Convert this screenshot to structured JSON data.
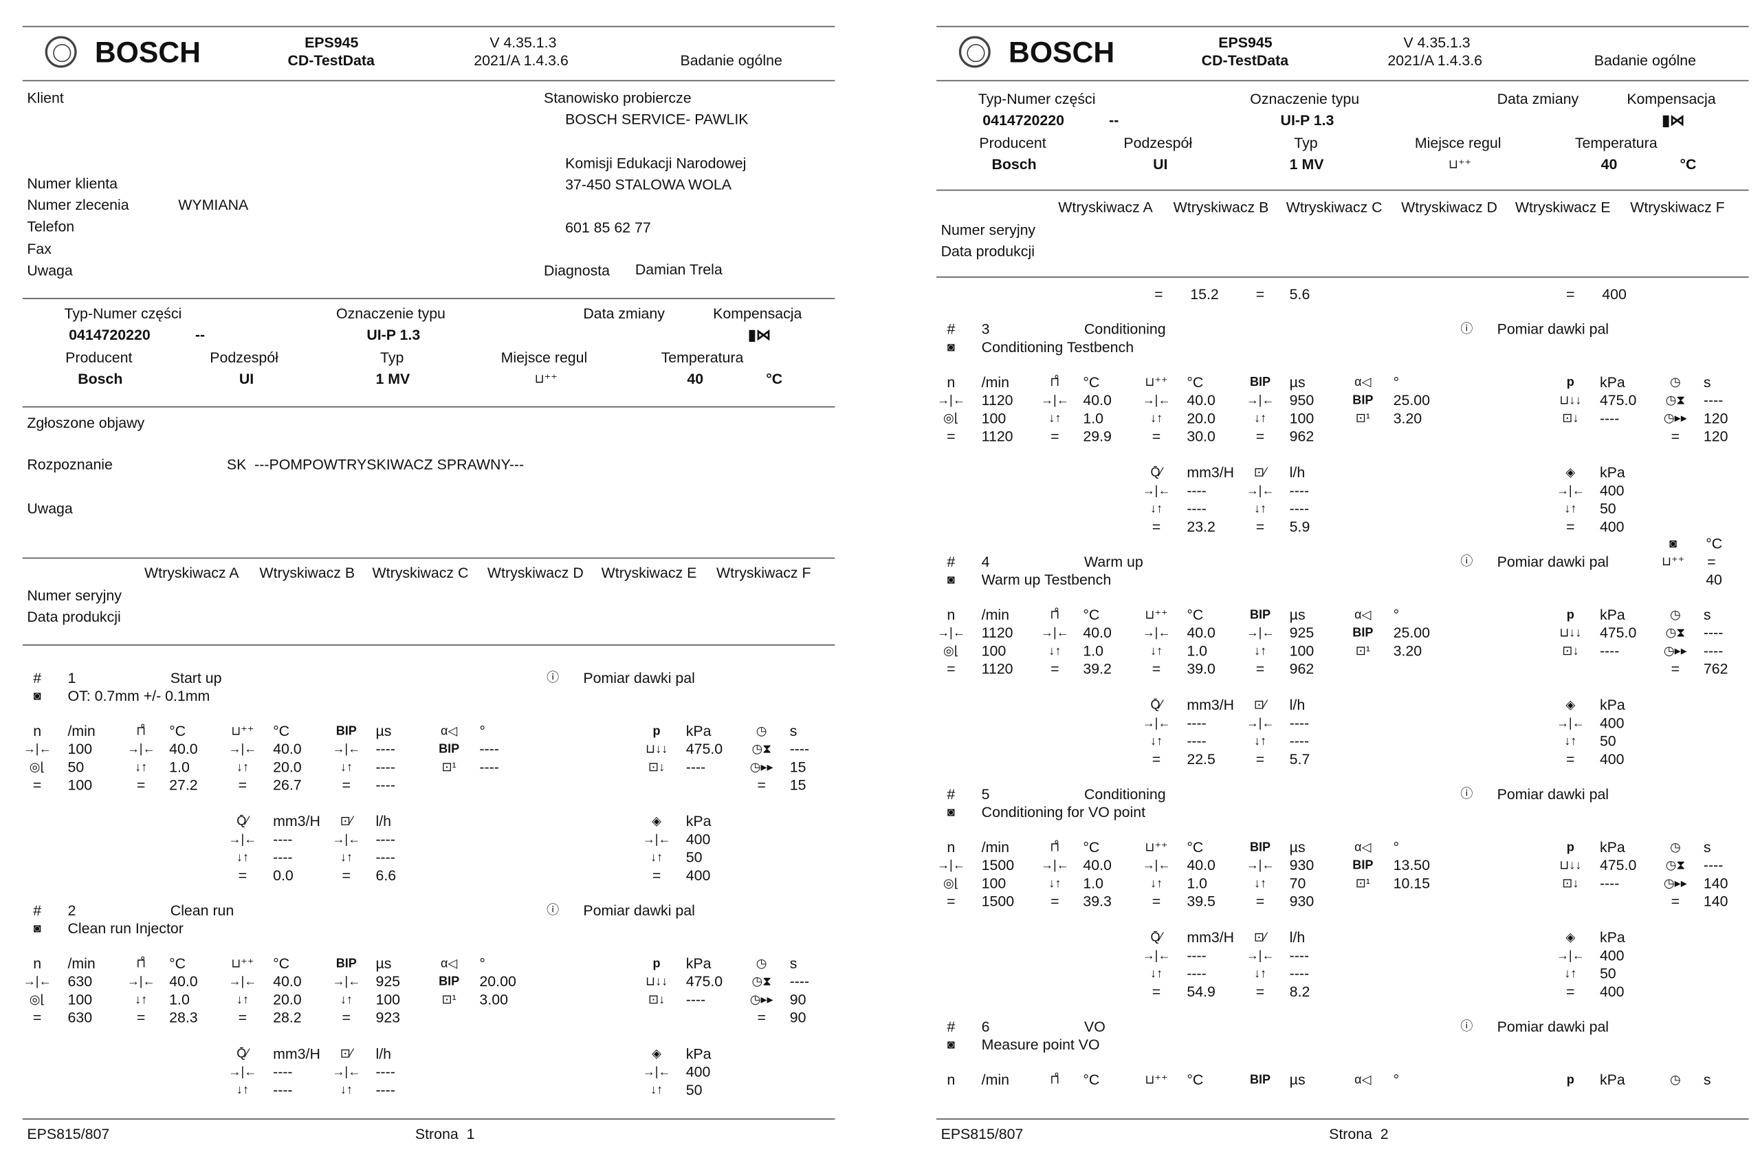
{
  "pages": [
    {
      "header": {
        "brand": "BOSCH",
        "product": "EPS945",
        "product_sub": "CD-TestData",
        "version": "V 4.35.1.3",
        "version_sub": "2021/A 1.4.3.6",
        "report_type": "Badanie ogólne"
      },
      "footer": {
        "left": "EPS815/807",
        "page": "Strona  1"
      }
    },
    {
      "header": {
        "brand": "BOSCH",
        "product": "EPS945",
        "product_sub": "CD-TestData",
        "version": "V 4.35.1.3",
        "version_sub": "2021/A 1.4.3.6",
        "report_type": "Badanie ogólne"
      },
      "footer": {
        "left": "EPS815/807",
        "page": "Strona  2"
      }
    }
  ],
  "client": {
    "klient_label": "Klient",
    "numer_klienta_label": "Numer klienta",
    "numer_zlecenia_label": "Numer zlecenia",
    "numer_zlecenia": "WYMIANA",
    "telefon_label": "Telefon",
    "fax_label": "Fax",
    "uwaga_label": "Uwaga",
    "station_label": "Stanowisko probiercze",
    "station_name": "BOSCH SERVICE- PAWLIK",
    "station_street": "Komisji Edukacji Narodowej",
    "station_city": "37-450 STALOWA WOLA",
    "station_phone": "601 85 62 77",
    "diagnosta_label": "Diagnosta",
    "diagnosta": "Damian Trela"
  },
  "part": {
    "typ_numer_label": "Typ-Numer części",
    "typ_numer": "0414720220",
    "typ_numer_suffix": "--",
    "oznaczenie_label": "Oznaczenie typu",
    "oznaczenie": "UI-P 1.3",
    "data_zmiany_label": "Data zmiany",
    "kompensacja_label": "Kompensacja",
    "kompensacja_icon": "temperature-compensation-icon",
    "producent_label": "Producent",
    "producent": "Bosch",
    "podzespol_label": "Podzespół",
    "podzespol": "UI",
    "typ_label": "Typ",
    "typ": "1 MV",
    "miejsce_label": "Miejsce regul",
    "miejsce_icon": "thermo-bath-icon",
    "temperatura_label": "Temperatura",
    "temperatura": "40",
    "temperatura_unit": "°C"
  },
  "findings": {
    "objawy_label": "Zgłoszone objawy",
    "rozpoznanie_label": "Rozpoznanie",
    "rozpoznanie": "SK  ---POMPOWTRYSKIWACZ SPRAWNY---",
    "uwaga_label": "Uwaga"
  },
  "injectors": {
    "columns": [
      "Wtryskiwacz A",
      "Wtryskiwacz B",
      "Wtryskiwacz C",
      "Wtryskiwacz D",
      "Wtryskiwacz E",
      "Wtryskiwacz F"
    ],
    "rows": [
      "Numer seryjny",
      "Data produkcji"
    ]
  },
  "symbols": {
    "hash": "#",
    "n": "n",
    "bip": "BIP",
    "p": "p",
    "eq": "="
  },
  "carryover": {
    "q": "15.2",
    "ret": "5.6",
    "pf": "400"
  },
  "tests": [
    {
      "num": "1",
      "name": "Start up",
      "desc": "OT: 0.7mm +/- 0.1mm",
      "measure": "Pomiar dawki pal",
      "n": [
        "100",
        "50",
        "100"
      ],
      "t1": [
        "40.0",
        "1.0",
        "27.2"
      ],
      "t2": [
        "40.0",
        "20.0",
        "26.7"
      ],
      "bip": [
        "----",
        "----",
        "----"
      ],
      "angle": [
        "----",
        "----"
      ],
      "p": [
        "475.0",
        "----"
      ],
      "time": [
        "----",
        "15",
        "15"
      ],
      "q": [
        "----",
        "----",
        "0.0"
      ],
      "ret": [
        "----",
        "----",
        "6.6"
      ],
      "pf": [
        "400",
        "50",
        "400"
      ]
    },
    {
      "num": "2",
      "name": "Clean run",
      "desc": "Clean run Injector",
      "measure": "Pomiar dawki pal",
      "n": [
        "630",
        "100",
        "630"
      ],
      "t1": [
        "40.0",
        "1.0",
        "28.3"
      ],
      "t2": [
        "40.0",
        "20.0",
        "28.2"
      ],
      "bip": [
        "925",
        "100",
        "923"
      ],
      "angle": [
        "20.00",
        "3.00"
      ],
      "p": [
        "475.0",
        "----"
      ],
      "time": [
        "----",
        "90",
        "90"
      ],
      "q": [
        "----",
        "----"
      ],
      "ret": [
        "----",
        "----"
      ],
      "pf": [
        "400",
        "50"
      ]
    },
    {
      "num": "3",
      "name": "Conditioning",
      "desc": "Conditioning Testbench",
      "measure": "Pomiar dawki pal",
      "n": [
        "1120",
        "100",
        "1120"
      ],
      "t1": [
        "40.0",
        "1.0",
        "29.9"
      ],
      "t2": [
        "40.0",
        "20.0",
        "30.0"
      ],
      "bip": [
        "950",
        "100",
        "962"
      ],
      "angle": [
        "25.00",
        "3.20"
      ],
      "p": [
        "475.0",
        "----"
      ],
      "time": [
        "----",
        "120",
        "120"
      ],
      "q": [
        "----",
        "----",
        "23.2"
      ],
      "ret": [
        "----",
        "----",
        "5.9"
      ],
      "pf": [
        "400",
        "50",
        "400"
      ],
      "extra": {
        "unit": "°C",
        "value": "40"
      }
    },
    {
      "num": "4",
      "name": "Warm up",
      "desc": "Warm up Testbench",
      "measure": "Pomiar dawki pal",
      "n": [
        "1120",
        "100",
        "1120"
      ],
      "t1": [
        "40.0",
        "1.0",
        "39.2"
      ],
      "t2": [
        "40.0",
        "1.0",
        "39.0"
      ],
      "bip": [
        "925",
        "100",
        "962"
      ],
      "angle": [
        "25.00",
        "3.20"
      ],
      "p": [
        "475.0",
        "----"
      ],
      "time": [
        "----",
        "----",
        "762"
      ],
      "q": [
        "----",
        "----",
        "22.5"
      ],
      "ret": [
        "----",
        "----",
        "5.7"
      ],
      "pf": [
        "400",
        "50",
        "400"
      ]
    },
    {
      "num": "5",
      "name": "Conditioning",
      "desc": "Conditioning for VO point",
      "measure": "Pomiar dawki pal",
      "n": [
        "1500",
        "100",
        "1500"
      ],
      "t1": [
        "40.0",
        "1.0",
        "39.3"
      ],
      "t2": [
        "40.0",
        "1.0",
        "39.5"
      ],
      "bip": [
        "930",
        "70",
        "930"
      ],
      "angle": [
        "13.50",
        "10.15"
      ],
      "p": [
        "475.0",
        "----"
      ],
      "time": [
        "----",
        "140",
        "140"
      ],
      "q": [
        "----",
        "----",
        "54.9"
      ],
      "ret": [
        "----",
        "----",
        "8.2"
      ],
      "pf": [
        "400",
        "50",
        "400"
      ]
    },
    {
      "num": "6",
      "name": "VO",
      "desc": "Measure point VO",
      "measure": "Pomiar dawki pal",
      "n": [],
      "t1": [],
      "t2": [],
      "bip": [],
      "angle": [],
      "p": [],
      "time": [],
      "noflow": true
    }
  ],
  "units": {
    "n": "/min",
    "t1": "°C",
    "t2": "°C",
    "bip": "µs",
    "angle": "°",
    "p": "kPa",
    "time": "s",
    "q": "mm3/H",
    "ret": "l/h",
    "pf": "kPa"
  },
  "icons": {
    "target": "→|←",
    "tolerance": "↓↑",
    "rpm_tol": "◎⌊",
    "thermo": "⊓̊",
    "bath": "⊔⁺⁺",
    "alpha": "α◁",
    "delta": "⊡¹",
    "pump": "⊔↓↓",
    "return": "⊡↓",
    "clock": "◷",
    "clock_wait": "◷⧗",
    "clock_run": "◷▸▸",
    "flow": "Q̄⁄",
    "ret_flow": "⊡⁄",
    "valve": "◈",
    "cam": "◙",
    "measure": "ⓘ"
  }
}
